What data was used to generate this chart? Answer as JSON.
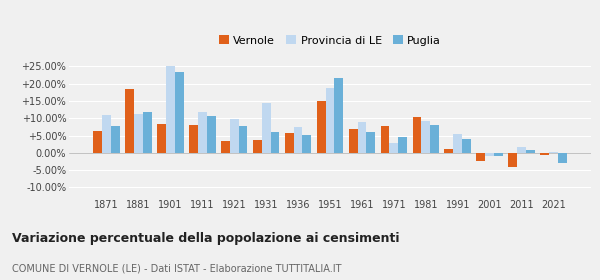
{
  "years": [
    1871,
    1881,
    1901,
    1911,
    1921,
    1931,
    1936,
    1951,
    1961,
    1971,
    1981,
    1991,
    2001,
    2011,
    2021
  ],
  "vernole": [
    6.2,
    18.5,
    8.3,
    8.0,
    3.3,
    3.7,
    5.7,
    14.9,
    6.9,
    7.7,
    10.3,
    1.1,
    -2.5,
    -4.2,
    -0.7
  ],
  "provincia_le": [
    11.0,
    11.3,
    25.0,
    11.7,
    9.9,
    14.5,
    7.6,
    18.7,
    8.8,
    2.7,
    9.3,
    5.4,
    -0.8,
    1.7,
    0.2
  ],
  "puglia": [
    7.7,
    11.7,
    23.5,
    10.6,
    7.8,
    6.1,
    5.1,
    21.5,
    6.1,
    4.7,
    8.1,
    4.0,
    -0.9,
    0.7,
    -2.9
  ],
  "color_vernole": "#e0601a",
  "color_provincia": "#c0d8f0",
  "color_puglia": "#6ab0d8",
  "title": "Variazione percentuale della popolazione ai censimenti",
  "subtitle": "COMUNE DI VERNOLE (LE) - Dati ISTAT - Elaborazione TUTTITALIA.IT",
  "legend_labels": [
    "Vernole",
    "Provincia di LE",
    "Puglia"
  ],
  "ylim": [
    -12.5,
    28
  ],
  "yticks": [
    -10,
    -5,
    0,
    5,
    10,
    15,
    20,
    25
  ],
  "background_color": "#f0f0f0"
}
